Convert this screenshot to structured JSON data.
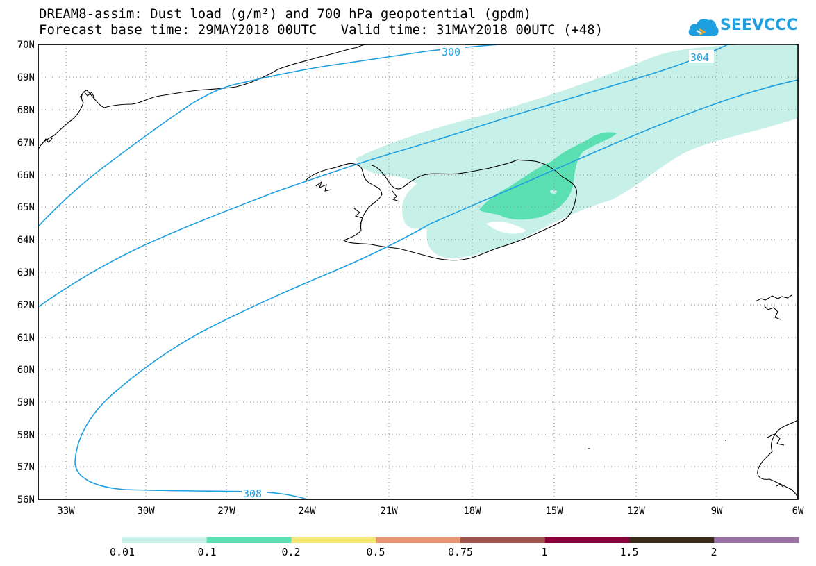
{
  "title_line1": "DREAM8-assim: Dust load (g/m²) and 700 hPa geopotential (gpdm)",
  "title_line2": "Forecast base time: 29MAY2018 00UTC   Valid time: 31MAY2018 00UTC (+48)",
  "logo_text": "SEEVCCC",
  "lat_labels": [
    "70N",
    "69N",
    "68N",
    "67N",
    "66N",
    "65N",
    "64N",
    "63N",
    "62N",
    "61N",
    "60N",
    "59N",
    "58N",
    "57N",
    "56N"
  ],
  "lon_labels": [
    "33W",
    "30W",
    "27W",
    "24W",
    "21W",
    "18W",
    "15W",
    "12W",
    "9W",
    "6W"
  ],
  "contour_labels": [
    "300",
    "304",
    "308"
  ],
  "legend": {
    "labels": [
      "0.01",
      "0.1",
      "0.2",
      "0.5",
      "0.75",
      "1",
      "1.5",
      "2"
    ],
    "colors": [
      "#c7f1e8",
      "#5ae0b3",
      "#f5e678",
      "#e99473",
      "#a0534c",
      "#87003a",
      "#3a2a1a",
      "#9a72a3"
    ]
  },
  "colors": {
    "contour": "#1e9fe0",
    "dust_low": "#c7f1e8",
    "dust_mid": "#5ae0b3",
    "coast": "#000000"
  }
}
